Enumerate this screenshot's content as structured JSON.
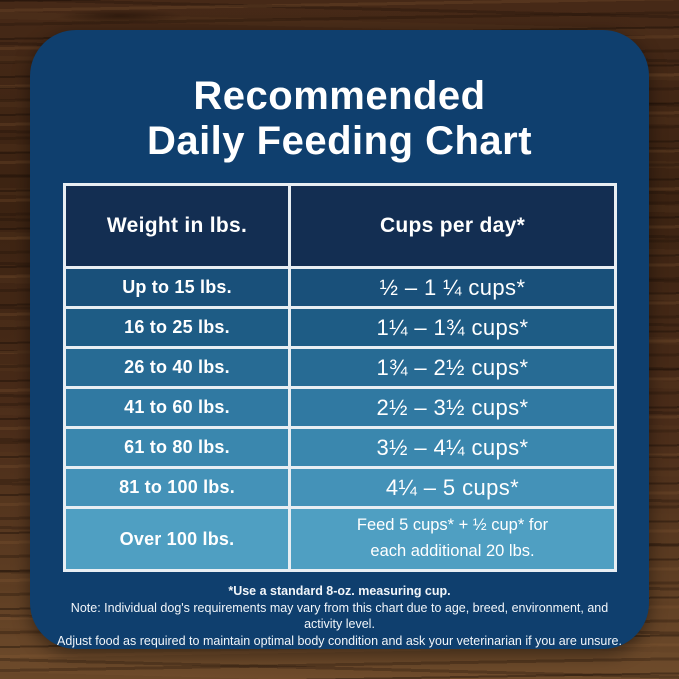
{
  "title": {
    "line1": "Recommended",
    "line2": "Daily Feeding Chart"
  },
  "table": {
    "header": {
      "weight": "Weight in lbs.",
      "cups": "Cups per day*"
    },
    "header_color": "#132e52",
    "border_color": "#e8eef3",
    "row_colors": [
      "#19507a",
      "#1e5c85",
      "#276b94",
      "#3079a2",
      "#3a87ae",
      "#4492b8",
      "#4f9fc2"
    ],
    "rows": [
      {
        "weight": "Up to 15 lbs.",
        "cups": "½ – 1 ¼ cups*"
      },
      {
        "weight": "16 to 25 lbs.",
        "cups": "1¼ – 1¾ cups*"
      },
      {
        "weight": "26 to 40 lbs.",
        "cups": "1¾ – 2½ cups*"
      },
      {
        "weight": "41 to 60 lbs.",
        "cups": "2½ – 3½ cups*"
      },
      {
        "weight": "61 to 80 lbs.",
        "cups": "3½ – 4¼ cups*"
      },
      {
        "weight": "81 to 100 lbs.",
        "cups": "4¼ – 5 cups*"
      },
      {
        "weight": "Over 100 lbs.",
        "cups_line1": "Feed 5 cups* + ½ cup* for",
        "cups_line2": "each additional 20 lbs."
      }
    ]
  },
  "footer": {
    "line1": "*Use a standard 8-oz. measuring cup.",
    "line2": "Note: Individual dog's requirements may vary from this chart due to age, breed, environment, and activity level.",
    "line3": "Adjust food as required to maintain optimal body condition and ask your veterinarian if you are unsure."
  },
  "colors": {
    "card": "#0f3f6e",
    "wood": "#452817",
    "text": "#ffffff"
  },
  "chart_data": {
    "type": "table",
    "title": "Recommended Daily Feeding Chart",
    "columns": [
      "Weight in lbs.",
      "Cups per day*"
    ],
    "rows": [
      [
        "Up to 15 lbs.",
        "½ – 1 ¼ cups*"
      ],
      [
        "16 to 25 lbs.",
        "1¼ – 1¾ cups*"
      ],
      [
        "26 to 40 lbs.",
        "1¾ – 2½ cups*"
      ],
      [
        "41 to 60 lbs.",
        "2½ – 3½ cups*"
      ],
      [
        "61 to 80 lbs.",
        "3½ – 4¼ cups*"
      ],
      [
        "81 to 100 lbs.",
        "4¼ – 5 cups*"
      ],
      [
        "Over 100 lbs.",
        "Feed 5 cups* + ½ cup* for each additional 20 lbs."
      ]
    ],
    "notes": [
      "*Use a standard 8-oz. measuring cup.",
      "Note: Individual dog's requirements may vary from this chart due to age, breed, environment, and activity level.",
      "Adjust food as required to maintain optimal body condition and ask your veterinarian if you are unsure."
    ]
  }
}
